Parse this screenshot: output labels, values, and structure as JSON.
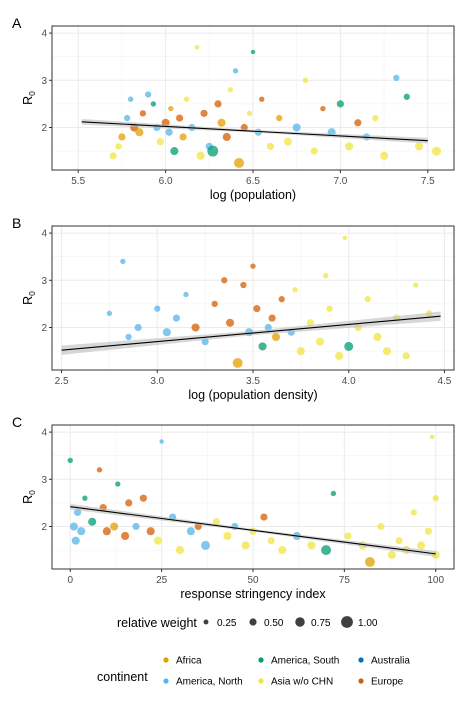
{
  "colors": {
    "Africa": "#E69F00",
    "America, North": "#56B4E9",
    "America, South": "#009E73",
    "Australia": "#0072B2",
    "Asia w/o CHN": "#F0E442",
    "Europe": "#D55E00",
    "fit": "#000000",
    "band": "#bdbdbd",
    "grid": "#ebebeb"
  },
  "chart_data": [
    {
      "type": "scatter",
      "panel_label": "A",
      "xlabel": "log (population)",
      "ylabel": "R",
      "ylabel_sub": "0",
      "xlim": [
        5.35,
        7.65
      ],
      "ylim": [
        1.1,
        4.15
      ],
      "xticks": [
        5.5,
        6.0,
        6.5,
        7.0,
        7.5
      ],
      "xtick_labels": [
        "5.5",
        "6.0",
        "6.5",
        "7.0",
        "7.5"
      ],
      "yticks": [
        2,
        3,
        4
      ],
      "ytick_labels": [
        "2",
        "3",
        "4"
      ],
      "fit": {
        "x": [
          5.52,
          7.5
        ],
        "y": [
          2.12,
          1.72
        ],
        "band": 0.06
      },
      "points": [
        {
          "x": 5.7,
          "y": 1.4,
          "w": 0.5,
          "c": "Asia w/o CHN"
        },
        {
          "x": 5.73,
          "y": 1.6,
          "w": 0.4,
          "c": "Asia w/o CHN"
        },
        {
          "x": 5.75,
          "y": 1.8,
          "w": 0.5,
          "c": "Africa"
        },
        {
          "x": 5.78,
          "y": 2.2,
          "w": 0.4,
          "c": "America, North"
        },
        {
          "x": 5.8,
          "y": 2.6,
          "w": 0.3,
          "c": "America, North"
        },
        {
          "x": 5.82,
          "y": 2.0,
          "w": 0.6,
          "c": "Europe"
        },
        {
          "x": 5.85,
          "y": 1.9,
          "w": 0.6,
          "c": "Africa"
        },
        {
          "x": 5.87,
          "y": 2.3,
          "w": 0.4,
          "c": "Europe"
        },
        {
          "x": 5.9,
          "y": 2.7,
          "w": 0.4,
          "c": "America, North"
        },
        {
          "x": 5.93,
          "y": 2.5,
          "w": 0.3,
          "c": "America, South"
        },
        {
          "x": 5.95,
          "y": 2.0,
          "w": 0.5,
          "c": "America, North"
        },
        {
          "x": 5.97,
          "y": 1.7,
          "w": 0.5,
          "c": "Asia w/o CHN"
        },
        {
          "x": 6.0,
          "y": 2.1,
          "w": 0.6,
          "c": "Europe"
        },
        {
          "x": 6.02,
          "y": 1.9,
          "w": 0.5,
          "c": "America, North"
        },
        {
          "x": 6.03,
          "y": 2.4,
          "w": 0.3,
          "c": "Africa"
        },
        {
          "x": 6.05,
          "y": 1.5,
          "w": 0.6,
          "c": "America, South"
        },
        {
          "x": 6.08,
          "y": 2.2,
          "w": 0.5,
          "c": "Europe"
        },
        {
          "x": 6.1,
          "y": 1.8,
          "w": 0.5,
          "c": "Africa"
        },
        {
          "x": 6.12,
          "y": 2.6,
          "w": 0.3,
          "c": "Asia w/o CHN"
        },
        {
          "x": 6.15,
          "y": 2.0,
          "w": 0.5,
          "c": "America, North"
        },
        {
          "x": 6.18,
          "y": 3.7,
          "w": 0.2,
          "c": "Asia w/o CHN"
        },
        {
          "x": 6.2,
          "y": 1.4,
          "w": 0.6,
          "c": "Asia w/o CHN"
        },
        {
          "x": 6.22,
          "y": 2.3,
          "w": 0.5,
          "c": "Europe"
        },
        {
          "x": 6.25,
          "y": 1.6,
          "w": 0.5,
          "c": "America, North"
        },
        {
          "x": 6.27,
          "y": 1.5,
          "w": 0.9,
          "c": "America, South"
        },
        {
          "x": 6.3,
          "y": 2.5,
          "w": 0.5,
          "c": "Europe"
        },
        {
          "x": 6.32,
          "y": 2.1,
          "w": 0.6,
          "c": "Africa"
        },
        {
          "x": 6.35,
          "y": 1.8,
          "w": 0.6,
          "c": "Europe"
        },
        {
          "x": 6.37,
          "y": 2.8,
          "w": 0.3,
          "c": "Asia w/o CHN"
        },
        {
          "x": 6.4,
          "y": 3.2,
          "w": 0.3,
          "c": "America, North"
        },
        {
          "x": 6.42,
          "y": 1.25,
          "w": 0.8,
          "c": "Africa"
        },
        {
          "x": 6.45,
          "y": 2.0,
          "w": 0.5,
          "c": "Europe"
        },
        {
          "x": 6.48,
          "y": 2.3,
          "w": 0.3,
          "c": "Asia w/o CHN"
        },
        {
          "x": 6.5,
          "y": 3.6,
          "w": 0.2,
          "c": "America, South"
        },
        {
          "x": 6.53,
          "y": 1.9,
          "w": 0.5,
          "c": "America, North"
        },
        {
          "x": 6.55,
          "y": 2.6,
          "w": 0.3,
          "c": "Europe"
        },
        {
          "x": 6.6,
          "y": 1.6,
          "w": 0.5,
          "c": "Asia w/o CHN"
        },
        {
          "x": 6.65,
          "y": 2.2,
          "w": 0.4,
          "c": "Africa"
        },
        {
          "x": 6.7,
          "y": 1.7,
          "w": 0.6,
          "c": "Asia w/o CHN"
        },
        {
          "x": 6.75,
          "y": 2.0,
          "w": 0.6,
          "c": "America, North"
        },
        {
          "x": 6.8,
          "y": 3.0,
          "w": 0.3,
          "c": "Asia w/o CHN"
        },
        {
          "x": 6.85,
          "y": 1.5,
          "w": 0.5,
          "c": "Asia w/o CHN"
        },
        {
          "x": 6.9,
          "y": 2.4,
          "w": 0.3,
          "c": "Europe"
        },
        {
          "x": 6.95,
          "y": 1.9,
          "w": 0.6,
          "c": "America, North"
        },
        {
          "x": 7.0,
          "y": 2.5,
          "w": 0.5,
          "c": "America, South"
        },
        {
          "x": 7.05,
          "y": 1.6,
          "w": 0.6,
          "c": "Asia w/o CHN"
        },
        {
          "x": 7.1,
          "y": 2.1,
          "w": 0.5,
          "c": "Europe"
        },
        {
          "x": 7.15,
          "y": 1.8,
          "w": 0.5,
          "c": "America, North"
        },
        {
          "x": 7.2,
          "y": 2.2,
          "w": 0.4,
          "c": "Asia w/o CHN"
        },
        {
          "x": 7.25,
          "y": 1.4,
          "w": 0.6,
          "c": "Asia w/o CHN"
        },
        {
          "x": 7.32,
          "y": 3.05,
          "w": 0.4,
          "c": "America, North"
        },
        {
          "x": 7.38,
          "y": 2.65,
          "w": 0.4,
          "c": "America, South"
        },
        {
          "x": 7.45,
          "y": 1.6,
          "w": 0.6,
          "c": "Asia w/o CHN"
        },
        {
          "x": 7.55,
          "y": 1.5,
          "w": 0.7,
          "c": "Asia w/o CHN"
        }
      ]
    },
    {
      "type": "scatter",
      "panel_label": "B",
      "xlabel": "log (population density)",
      "ylabel": "R",
      "ylabel_sub": "0",
      "xlim": [
        2.45,
        4.55
      ],
      "ylim": [
        1.1,
        4.15
      ],
      "xticks": [
        2.5,
        3.0,
        3.5,
        4.0,
        4.5
      ],
      "xtick_labels": [
        "2.5",
        "3.0",
        "3.5",
        "4.0",
        "4.5"
      ],
      "yticks": [
        2,
        3,
        4
      ],
      "ytick_labels": [
        "2",
        "3",
        "4"
      ],
      "fit": {
        "x": [
          2.5,
          4.48
        ],
        "y": [
          1.52,
          2.24
        ],
        "band": 0.1
      },
      "points": [
        {
          "x": 2.75,
          "y": 2.3,
          "w": 0.3,
          "c": "America, North"
        },
        {
          "x": 2.82,
          "y": 3.4,
          "w": 0.3,
          "c": "America, North"
        },
        {
          "x": 2.85,
          "y": 1.8,
          "w": 0.4,
          "c": "America, North"
        },
        {
          "x": 2.9,
          "y": 2.0,
          "w": 0.5,
          "c": "America, North"
        },
        {
          "x": 3.0,
          "y": 2.4,
          "w": 0.4,
          "c": "America, North"
        },
        {
          "x": 3.05,
          "y": 1.9,
          "w": 0.6,
          "c": "America, North"
        },
        {
          "x": 3.1,
          "y": 2.2,
          "w": 0.5,
          "c": "America, North"
        },
        {
          "x": 3.15,
          "y": 2.7,
          "w": 0.3,
          "c": "America, North"
        },
        {
          "x": 3.2,
          "y": 2.0,
          "w": 0.6,
          "c": "Europe"
        },
        {
          "x": 3.25,
          "y": 1.7,
          "w": 0.5,
          "c": "America, North"
        },
        {
          "x": 3.3,
          "y": 2.5,
          "w": 0.4,
          "c": "Europe"
        },
        {
          "x": 3.35,
          "y": 3.0,
          "w": 0.4,
          "c": "Europe"
        },
        {
          "x": 3.38,
          "y": 2.1,
          "w": 0.6,
          "c": "Europe"
        },
        {
          "x": 3.42,
          "y": 1.25,
          "w": 0.8,
          "c": "Africa"
        },
        {
          "x": 3.45,
          "y": 2.9,
          "w": 0.4,
          "c": "Europe"
        },
        {
          "x": 3.48,
          "y": 1.9,
          "w": 0.6,
          "c": "America, North"
        },
        {
          "x": 3.5,
          "y": 3.3,
          "w": 0.3,
          "c": "Europe"
        },
        {
          "x": 3.52,
          "y": 2.4,
          "w": 0.5,
          "c": "Europe"
        },
        {
          "x": 3.55,
          "y": 1.6,
          "w": 0.6,
          "c": "America, South"
        },
        {
          "x": 3.58,
          "y": 2.0,
          "w": 0.5,
          "c": "America, North"
        },
        {
          "x": 3.6,
          "y": 2.2,
          "w": 0.5,
          "c": "Europe"
        },
        {
          "x": 3.62,
          "y": 1.8,
          "w": 0.6,
          "c": "Africa"
        },
        {
          "x": 3.65,
          "y": 2.6,
          "w": 0.4,
          "c": "Europe"
        },
        {
          "x": 3.7,
          "y": 1.9,
          "w": 0.5,
          "c": "America, North"
        },
        {
          "x": 3.72,
          "y": 2.8,
          "w": 0.3,
          "c": "Asia w/o CHN"
        },
        {
          "x": 3.75,
          "y": 1.5,
          "w": 0.6,
          "c": "Asia w/o CHN"
        },
        {
          "x": 3.8,
          "y": 2.1,
          "w": 0.5,
          "c": "Asia w/o CHN"
        },
        {
          "x": 3.85,
          "y": 1.7,
          "w": 0.6,
          "c": "Asia w/o CHN"
        },
        {
          "x": 3.88,
          "y": 3.1,
          "w": 0.3,
          "c": "Asia w/o CHN"
        },
        {
          "x": 3.9,
          "y": 2.4,
          "w": 0.4,
          "c": "Asia w/o CHN"
        },
        {
          "x": 3.95,
          "y": 1.4,
          "w": 0.6,
          "c": "Asia w/o CHN"
        },
        {
          "x": 3.98,
          "y": 3.9,
          "w": 0.2,
          "c": "Asia w/o CHN"
        },
        {
          "x": 4.0,
          "y": 1.6,
          "w": 0.7,
          "c": "America, South"
        },
        {
          "x": 4.05,
          "y": 2.0,
          "w": 0.5,
          "c": "Asia w/o CHN"
        },
        {
          "x": 4.1,
          "y": 2.6,
          "w": 0.4,
          "c": "Asia w/o CHN"
        },
        {
          "x": 4.15,
          "y": 1.8,
          "w": 0.6,
          "c": "Asia w/o CHN"
        },
        {
          "x": 4.2,
          "y": 1.5,
          "w": 0.6,
          "c": "Asia w/o CHN"
        },
        {
          "x": 4.25,
          "y": 2.2,
          "w": 0.5,
          "c": "Asia w/o CHN"
        },
        {
          "x": 4.3,
          "y": 1.4,
          "w": 0.5,
          "c": "Asia w/o CHN"
        },
        {
          "x": 4.35,
          "y": 2.9,
          "w": 0.3,
          "c": "Asia w/o CHN"
        },
        {
          "x": 4.42,
          "y": 2.3,
          "w": 0.4,
          "c": "Asia w/o CHN"
        }
      ]
    },
    {
      "type": "scatter",
      "panel_label": "C",
      "xlabel": "response stringency index",
      "ylabel": "R",
      "ylabel_sub": "0",
      "xlim": [
        -5,
        105
      ],
      "ylim": [
        1.1,
        4.15
      ],
      "xticks": [
        0,
        25,
        50,
        75,
        100
      ],
      "xtick_labels": [
        "0",
        "25",
        "50",
        "75",
        "100"
      ],
      "yticks": [
        2,
        3,
        4
      ],
      "ytick_labels": [
        "2",
        "3",
        "4"
      ],
      "fit": {
        "x": [
          0,
          100
        ],
        "y": [
          2.42,
          1.42
        ],
        "band": 0.06
      },
      "points": [
        {
          "x": 0,
          "y": 3.4,
          "w": 0.3,
          "c": "America, South"
        },
        {
          "x": 1,
          "y": 2.0,
          "w": 0.6,
          "c": "America, North"
        },
        {
          "x": 1.5,
          "y": 1.7,
          "w": 0.6,
          "c": "America, North"
        },
        {
          "x": 2,
          "y": 2.3,
          "w": 0.5,
          "c": "America, North"
        },
        {
          "x": 3,
          "y": 1.9,
          "w": 0.6,
          "c": "America, North"
        },
        {
          "x": 4,
          "y": 2.6,
          "w": 0.3,
          "c": "America, South"
        },
        {
          "x": 6,
          "y": 2.1,
          "w": 0.6,
          "c": "America, South"
        },
        {
          "x": 8,
          "y": 3.2,
          "w": 0.3,
          "c": "Europe"
        },
        {
          "x": 9,
          "y": 2.4,
          "w": 0.5,
          "c": "Europe"
        },
        {
          "x": 10,
          "y": 1.9,
          "w": 0.6,
          "c": "Europe"
        },
        {
          "x": 12,
          "y": 2.0,
          "w": 0.6,
          "c": "Africa"
        },
        {
          "x": 13,
          "y": 2.9,
          "w": 0.3,
          "c": "America, South"
        },
        {
          "x": 15,
          "y": 1.8,
          "w": 0.6,
          "c": "Europe"
        },
        {
          "x": 16,
          "y": 2.5,
          "w": 0.5,
          "c": "Europe"
        },
        {
          "x": 18,
          "y": 2.0,
          "w": 0.5,
          "c": "America, North"
        },
        {
          "x": 20,
          "y": 2.6,
          "w": 0.5,
          "c": "Europe"
        },
        {
          "x": 22,
          "y": 1.9,
          "w": 0.6,
          "c": "Europe"
        },
        {
          "x": 24,
          "y": 1.7,
          "w": 0.6,
          "c": "Asia w/o CHN"
        },
        {
          "x": 25,
          "y": 3.8,
          "w": 0.2,
          "c": "America, North"
        },
        {
          "x": 28,
          "y": 2.2,
          "w": 0.5,
          "c": "America, North"
        },
        {
          "x": 30,
          "y": 1.5,
          "w": 0.6,
          "c": "Asia w/o CHN"
        },
        {
          "x": 33,
          "y": 1.9,
          "w": 0.6,
          "c": "America, North"
        },
        {
          "x": 35,
          "y": 2.0,
          "w": 0.5,
          "c": "Europe"
        },
        {
          "x": 37,
          "y": 1.6,
          "w": 0.7,
          "c": "America, North"
        },
        {
          "x": 40,
          "y": 2.1,
          "w": 0.5,
          "c": "Asia w/o CHN"
        },
        {
          "x": 43,
          "y": 1.8,
          "w": 0.6,
          "c": "Asia w/o CHN"
        },
        {
          "x": 45,
          "y": 2.0,
          "w": 0.5,
          "c": "America, North"
        },
        {
          "x": 48,
          "y": 1.6,
          "w": 0.6,
          "c": "Asia w/o CHN"
        },
        {
          "x": 50,
          "y": 1.9,
          "w": 0.5,
          "c": "Asia w/o CHN"
        },
        {
          "x": 53,
          "y": 2.2,
          "w": 0.5,
          "c": "Europe"
        },
        {
          "x": 55,
          "y": 1.7,
          "w": 0.5,
          "c": "Asia w/o CHN"
        },
        {
          "x": 58,
          "y": 1.5,
          "w": 0.6,
          "c": "Asia w/o CHN"
        },
        {
          "x": 62,
          "y": 1.8,
          "w": 0.6,
          "c": "America, North"
        },
        {
          "x": 66,
          "y": 1.6,
          "w": 0.6,
          "c": "Asia w/o CHN"
        },
        {
          "x": 70,
          "y": 1.5,
          "w": 0.8,
          "c": "America, South"
        },
        {
          "x": 72,
          "y": 2.7,
          "w": 0.3,
          "c": "America, South"
        },
        {
          "x": 76,
          "y": 1.8,
          "w": 0.5,
          "c": "Asia w/o CHN"
        },
        {
          "x": 80,
          "y": 1.6,
          "w": 0.6,
          "c": "Asia w/o CHN"
        },
        {
          "x": 82,
          "y": 1.25,
          "w": 0.8,
          "c": "Africa"
        },
        {
          "x": 85,
          "y": 2.0,
          "w": 0.5,
          "c": "Asia w/o CHN"
        },
        {
          "x": 88,
          "y": 1.4,
          "w": 0.6,
          "c": "Asia w/o CHN"
        },
        {
          "x": 90,
          "y": 1.7,
          "w": 0.5,
          "c": "Asia w/o CHN"
        },
        {
          "x": 92,
          "y": 1.5,
          "w": 0.6,
          "c": "Asia w/o CHN"
        },
        {
          "x": 94,
          "y": 2.3,
          "w": 0.4,
          "c": "Asia w/o CHN"
        },
        {
          "x": 96,
          "y": 1.6,
          "w": 0.6,
          "c": "Asia w/o CHN"
        },
        {
          "x": 98,
          "y": 1.9,
          "w": 0.5,
          "c": "Asia w/o CHN"
        },
        {
          "x": 99,
          "y": 3.9,
          "w": 0.2,
          "c": "Asia w/o CHN"
        },
        {
          "x": 100,
          "y": 2.6,
          "w": 0.4,
          "c": "Asia w/o CHN"
        },
        {
          "x": 100,
          "y": 1.4,
          "w": 0.6,
          "c": "Asia w/o CHN"
        }
      ]
    }
  ],
  "legend_weight": {
    "title": "relative weight",
    "items": [
      {
        "value": 0.25,
        "label": "0.25"
      },
      {
        "value": 0.5,
        "label": "0.50"
      },
      {
        "value": 0.75,
        "label": "0.75"
      },
      {
        "value": 1.0,
        "label": "1.00"
      }
    ]
  },
  "legend_continent": {
    "title": "continent",
    "items": [
      "Africa",
      "America, South",
      "Australia",
      "America, North",
      "Asia w/o CHN",
      "Europe"
    ]
  }
}
